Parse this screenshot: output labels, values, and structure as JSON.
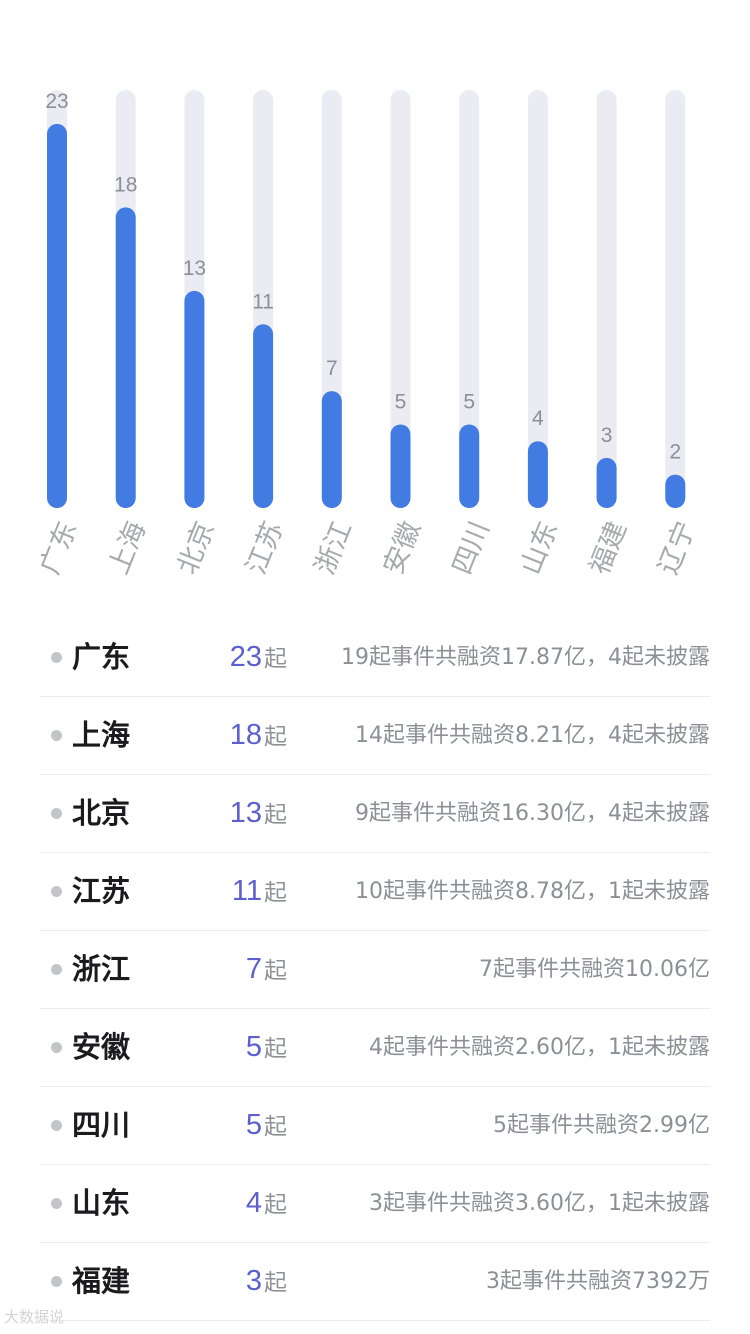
{
  "chart_data": {
    "type": "bar",
    "categories": [
      "广东",
      "上海",
      "北京",
      "江苏",
      "浙江",
      "安徽",
      "四川",
      "山东",
      "福建",
      "辽宁"
    ],
    "values": [
      23,
      18,
      13,
      11,
      7,
      5,
      5,
      4,
      3,
      2
    ],
    "ylim": [
      0,
      25
    ],
    "title": "",
    "xlabel": "",
    "ylabel": "",
    "grid": false,
    "colors": {
      "bar": "#427be1",
      "track": "#ebecf3"
    }
  },
  "list": {
    "unit": "起",
    "rows": [
      {
        "province": "广东",
        "count": "23",
        "desc": "19起事件共融资17.87亿，4起未披露"
      },
      {
        "province": "上海",
        "count": "18",
        "desc": "14起事件共融资8.21亿，4起未披露"
      },
      {
        "province": "北京",
        "count": "13",
        "desc": "9起事件共融资16.30亿，4起未披露"
      },
      {
        "province": "江苏",
        "count": "11",
        "desc": "10起事件共融资8.78亿，1起未披露"
      },
      {
        "province": "浙江",
        "count": "7",
        "desc": "7起事件共融资10.06亿"
      },
      {
        "province": "安徽",
        "count": "5",
        "desc": "4起事件共融资2.60亿，1起未披露"
      },
      {
        "province": "四川",
        "count": "5",
        "desc": "5起事件共融资2.99亿"
      },
      {
        "province": "山东",
        "count": "4",
        "desc": "3起事件共融资3.60亿，1起未披露"
      },
      {
        "province": "福建",
        "count": "3",
        "desc": "3起事件共融资7392万"
      }
    ]
  },
  "watermark": "大数据说"
}
